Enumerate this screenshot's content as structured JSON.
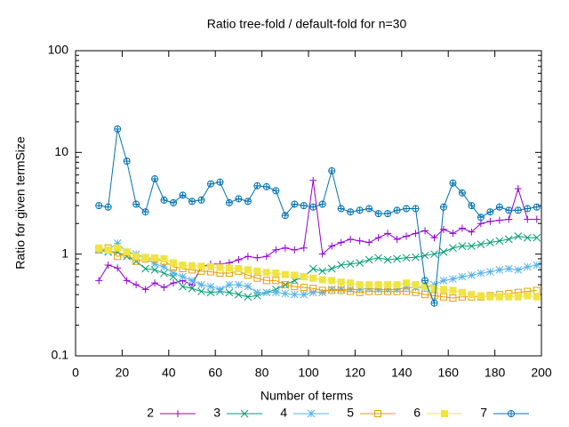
{
  "chart_data": {
    "type": "line",
    "title": "Ratio tree-fold / default-fold for n=30",
    "xlabel": "Number of terms",
    "ylabel": "Ratio for given termSize",
    "xlim": [
      0,
      200
    ],
    "xticks": [
      0,
      20,
      40,
      60,
      80,
      100,
      120,
      140,
      160,
      180,
      200
    ],
    "ylim": [
      0.1,
      100
    ],
    "yticks": [
      0.1,
      1,
      10,
      100
    ],
    "ylog": true,
    "legend": "bottom",
    "x": [
      10,
      14,
      18,
      22,
      26,
      30,
      34,
      38,
      42,
      46,
      50,
      54,
      58,
      62,
      66,
      70,
      74,
      78,
      82,
      86,
      90,
      94,
      98,
      102,
      106,
      110,
      114,
      118,
      122,
      126,
      130,
      134,
      138,
      142,
      146,
      150,
      154,
      158,
      162,
      166,
      170,
      174,
      178,
      182,
      186,
      190,
      194,
      198
    ],
    "series": [
      {
        "name": "2",
        "color": "#9400d3",
        "marker": "plus",
        "values": [
          0.55,
          0.78,
          0.73,
          0.55,
          0.5,
          0.45,
          0.52,
          0.47,
          0.52,
          0.55,
          0.5,
          0.75,
          0.8,
          0.8,
          0.82,
          0.88,
          0.95,
          0.92,
          0.95,
          1.1,
          1.15,
          1.1,
          1.15,
          5.3,
          1.0,
          1.2,
          1.3,
          1.4,
          1.35,
          1.3,
          1.45,
          1.6,
          1.4,
          1.5,
          1.6,
          1.7,
          1.45,
          1.75,
          1.6,
          1.8,
          1.65,
          2.0,
          2.1,
          2.15,
          2.2,
          4.4,
          2.2,
          2.2
        ]
      },
      {
        "name": "3",
        "color": "#009e73",
        "marker": "cross",
        "values": [
          1.1,
          1.05,
          1.05,
          0.95,
          0.85,
          0.72,
          0.7,
          0.65,
          0.6,
          0.48,
          0.46,
          0.43,
          0.42,
          0.43,
          0.42,
          0.4,
          0.38,
          0.39,
          0.42,
          0.45,
          0.5,
          0.55,
          0.6,
          0.72,
          0.68,
          0.72,
          0.78,
          0.8,
          0.82,
          0.88,
          0.92,
          0.88,
          0.9,
          0.92,
          0.93,
          0.97,
          1.0,
          1.05,
          1.15,
          1.2,
          1.2,
          1.25,
          1.3,
          1.35,
          1.4,
          1.5,
          1.45,
          1.45
        ]
      },
      {
        "name": "4",
        "color": "#56b4e9",
        "marker": "star",
        "values": [
          1.1,
          1.1,
          1.28,
          1.05,
          1.0,
          0.92,
          0.8,
          0.75,
          0.65,
          0.6,
          0.55,
          0.5,
          0.48,
          0.45,
          0.5,
          0.5,
          0.48,
          0.42,
          0.42,
          0.42,
          0.41,
          0.4,
          0.4,
          0.42,
          0.42,
          0.45,
          0.45,
          0.45,
          0.45,
          0.46,
          0.45,
          0.45,
          0.45,
          0.47,
          0.47,
          0.47,
          0.5,
          0.55,
          0.57,
          0.6,
          0.62,
          0.65,
          0.67,
          0.7,
          0.72,
          0.7,
          0.75,
          0.78
        ]
      },
      {
        "name": "5",
        "color": "#e69f00",
        "marker": "square",
        "values": [
          1.1,
          1.15,
          0.95,
          1.0,
          0.85,
          0.9,
          0.9,
          0.85,
          0.75,
          0.72,
          0.7,
          0.68,
          0.67,
          0.65,
          0.65,
          0.68,
          0.62,
          0.58,
          0.55,
          0.55,
          0.5,
          0.48,
          0.47,
          0.46,
          0.44,
          0.44,
          0.44,
          0.43,
          0.42,
          0.43,
          0.43,
          0.43,
          0.43,
          0.43,
          0.42,
          0.4,
          0.39,
          0.38,
          0.37,
          0.38,
          0.38,
          0.38,
          0.39,
          0.4,
          0.41,
          0.42,
          0.43,
          0.44
        ]
      },
      {
        "name": "6",
        "color": "#f0e442",
        "marker": "filled-square",
        "values": [
          1.15,
          1.1,
          1.15,
          1.05,
          0.95,
          0.93,
          0.92,
          0.9,
          0.82,
          0.78,
          0.77,
          0.76,
          0.75,
          0.74,
          0.73,
          0.72,
          0.7,
          0.68,
          0.66,
          0.65,
          0.63,
          0.62,
          0.6,
          0.58,
          0.56,
          0.55,
          0.53,
          0.52,
          0.5,
          0.5,
          0.5,
          0.5,
          0.5,
          0.52,
          0.5,
          0.48,
          0.46,
          0.45,
          0.44,
          0.42,
          0.4,
          0.39,
          0.38,
          0.38,
          0.38,
          0.38,
          0.39,
          0.38
        ]
      },
      {
        "name": "7",
        "color": "#0072b2",
        "marker": "circle-plus",
        "values": [
          3.0,
          2.9,
          17,
          8.2,
          3.1,
          2.6,
          5.5,
          3.4,
          3.2,
          3.8,
          3.3,
          3.4,
          4.9,
          5.1,
          3.2,
          3.5,
          3.3,
          4.7,
          4.6,
          4.2,
          2.4,
          3.1,
          3.0,
          2.9,
          3.1,
          6.6,
          2.8,
          2.6,
          2.7,
          2.8,
          2.5,
          2.5,
          2.7,
          2.8,
          2.8,
          0.55,
          0.33,
          2.9,
          5.0,
          4.0,
          3.0,
          2.3,
          2.6,
          2.9,
          2.7,
          2.7,
          2.8,
          2.9
        ]
      }
    ]
  }
}
